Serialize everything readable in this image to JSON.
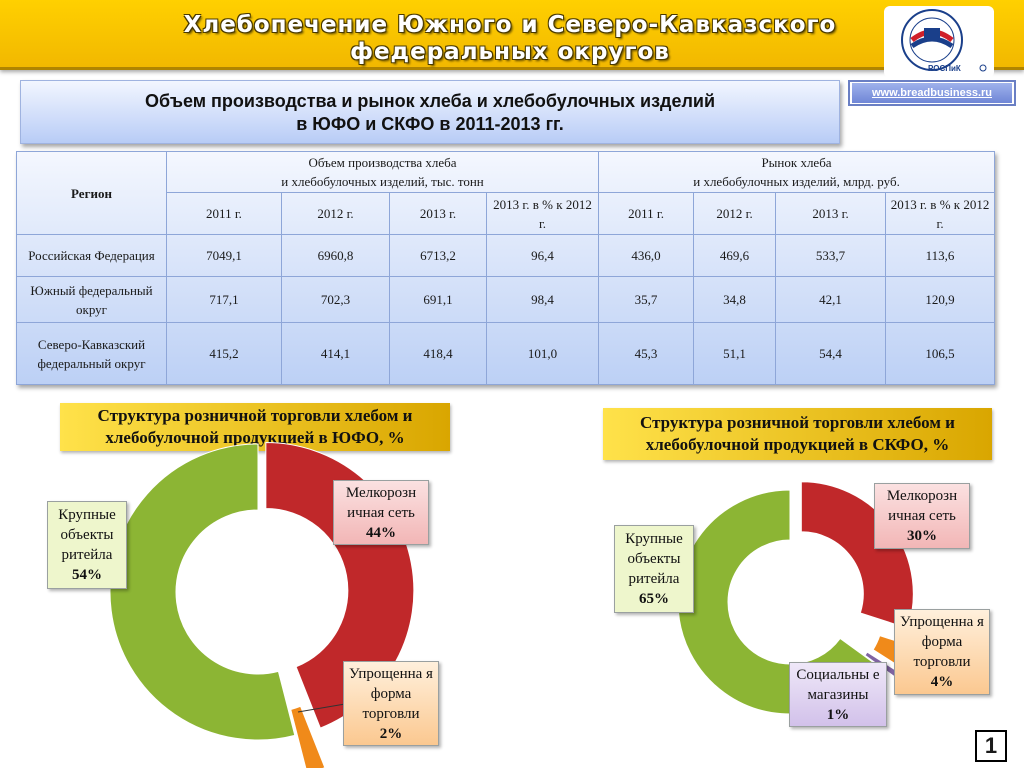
{
  "header": {
    "title_line1": "Хлебопечение Южного и Северо-Кавказского",
    "title_line2": "федеральных округов",
    "logo_text": "РОСПиК",
    "website": "www.breadbusiness.ru"
  },
  "main_title": {
    "line1": "Объем производства и рынок хлеба и хлебобулочных изделий",
    "line2": "в ЮФО и СКФО в 2011-2013 гг."
  },
  "table": {
    "region_header": "Регион",
    "group1_line1": "Объем производства хлеба",
    "group1_line2": "и хлебобулочных изделий, тыс. тонн",
    "group2_line1": "Рынок хлеба",
    "group2_line2": "и хлебобулочных изделий, млрд. руб.",
    "sub_headers": [
      "2011 г.",
      "2012 г.",
      "2013 г.",
      "2013 г. в % к 2012 г.",
      "2011 г.",
      "2012 г.",
      "2013 г.",
      "2013 г. в % к 2012 г."
    ],
    "rows": [
      {
        "region": "Российская Федерация",
        "cells": [
          "7049,1",
          "6960,8",
          "6713,2",
          "96,4",
          "436,0",
          "469,6",
          "533,7",
          "113,6"
        ]
      },
      {
        "region": "Южный федеральный округ",
        "cells": [
          "717,1",
          "702,3",
          "691,1",
          "98,4",
          "35,7",
          "34,8",
          "42,1",
          "120,9"
        ]
      },
      {
        "region": "Северо-Кавказский федеральный округ",
        "cells": [
          "415,2",
          "414,1",
          "418,4",
          "101,0",
          "45,3",
          "51,1",
          "54,4",
          "106,5"
        ]
      }
    ]
  },
  "chart_data": [
    {
      "type": "pie",
      "title": "Структура розничной торговли хлебом и хлебобулочной продукцией в ЮФО, %",
      "slices": [
        {
          "label": "Мелкорозничная сеть",
          "label_display": "Мелкорозн ичная сеть",
          "value": 44,
          "value_label": "44%",
          "color": "#c0282a"
        },
        {
          "label": "Упрощенная форма торговли",
          "label_display": "Упрощенна я форма торговли",
          "value": 2,
          "value_label": "2%",
          "color": "#f08a1a"
        },
        {
          "label": "Крупные объекты ритейла",
          "label_display": "Крупные объекты ритейла",
          "value": 54,
          "value_label": "54%",
          "color": "#8cb534"
        }
      ]
    },
    {
      "type": "pie",
      "title": "Структура розничной торговли хлебом и хлебобулочной продукцией в СКФО, %",
      "slices": [
        {
          "label": "Мелкорозничная сеть",
          "label_display": "Мелкорозн ичная сеть",
          "value": 30,
          "value_label": "30%",
          "color": "#c0282a"
        },
        {
          "label": "Упрощенная форма торговли",
          "label_display": "Упрощенна я форма торговли",
          "value": 4,
          "value_label": "4%",
          "color": "#f08a1a"
        },
        {
          "label": "Социальные магазины",
          "label_display": "Социальны е магазины",
          "value": 1,
          "value_label": "1%",
          "color": "#8064a2"
        },
        {
          "label": "Крупные объекты ритейла",
          "label_display": "Крупные объекты ритейла",
          "value": 65,
          "value_label": "65%",
          "color": "#8cb534"
        }
      ]
    }
  ],
  "page_number": "1"
}
